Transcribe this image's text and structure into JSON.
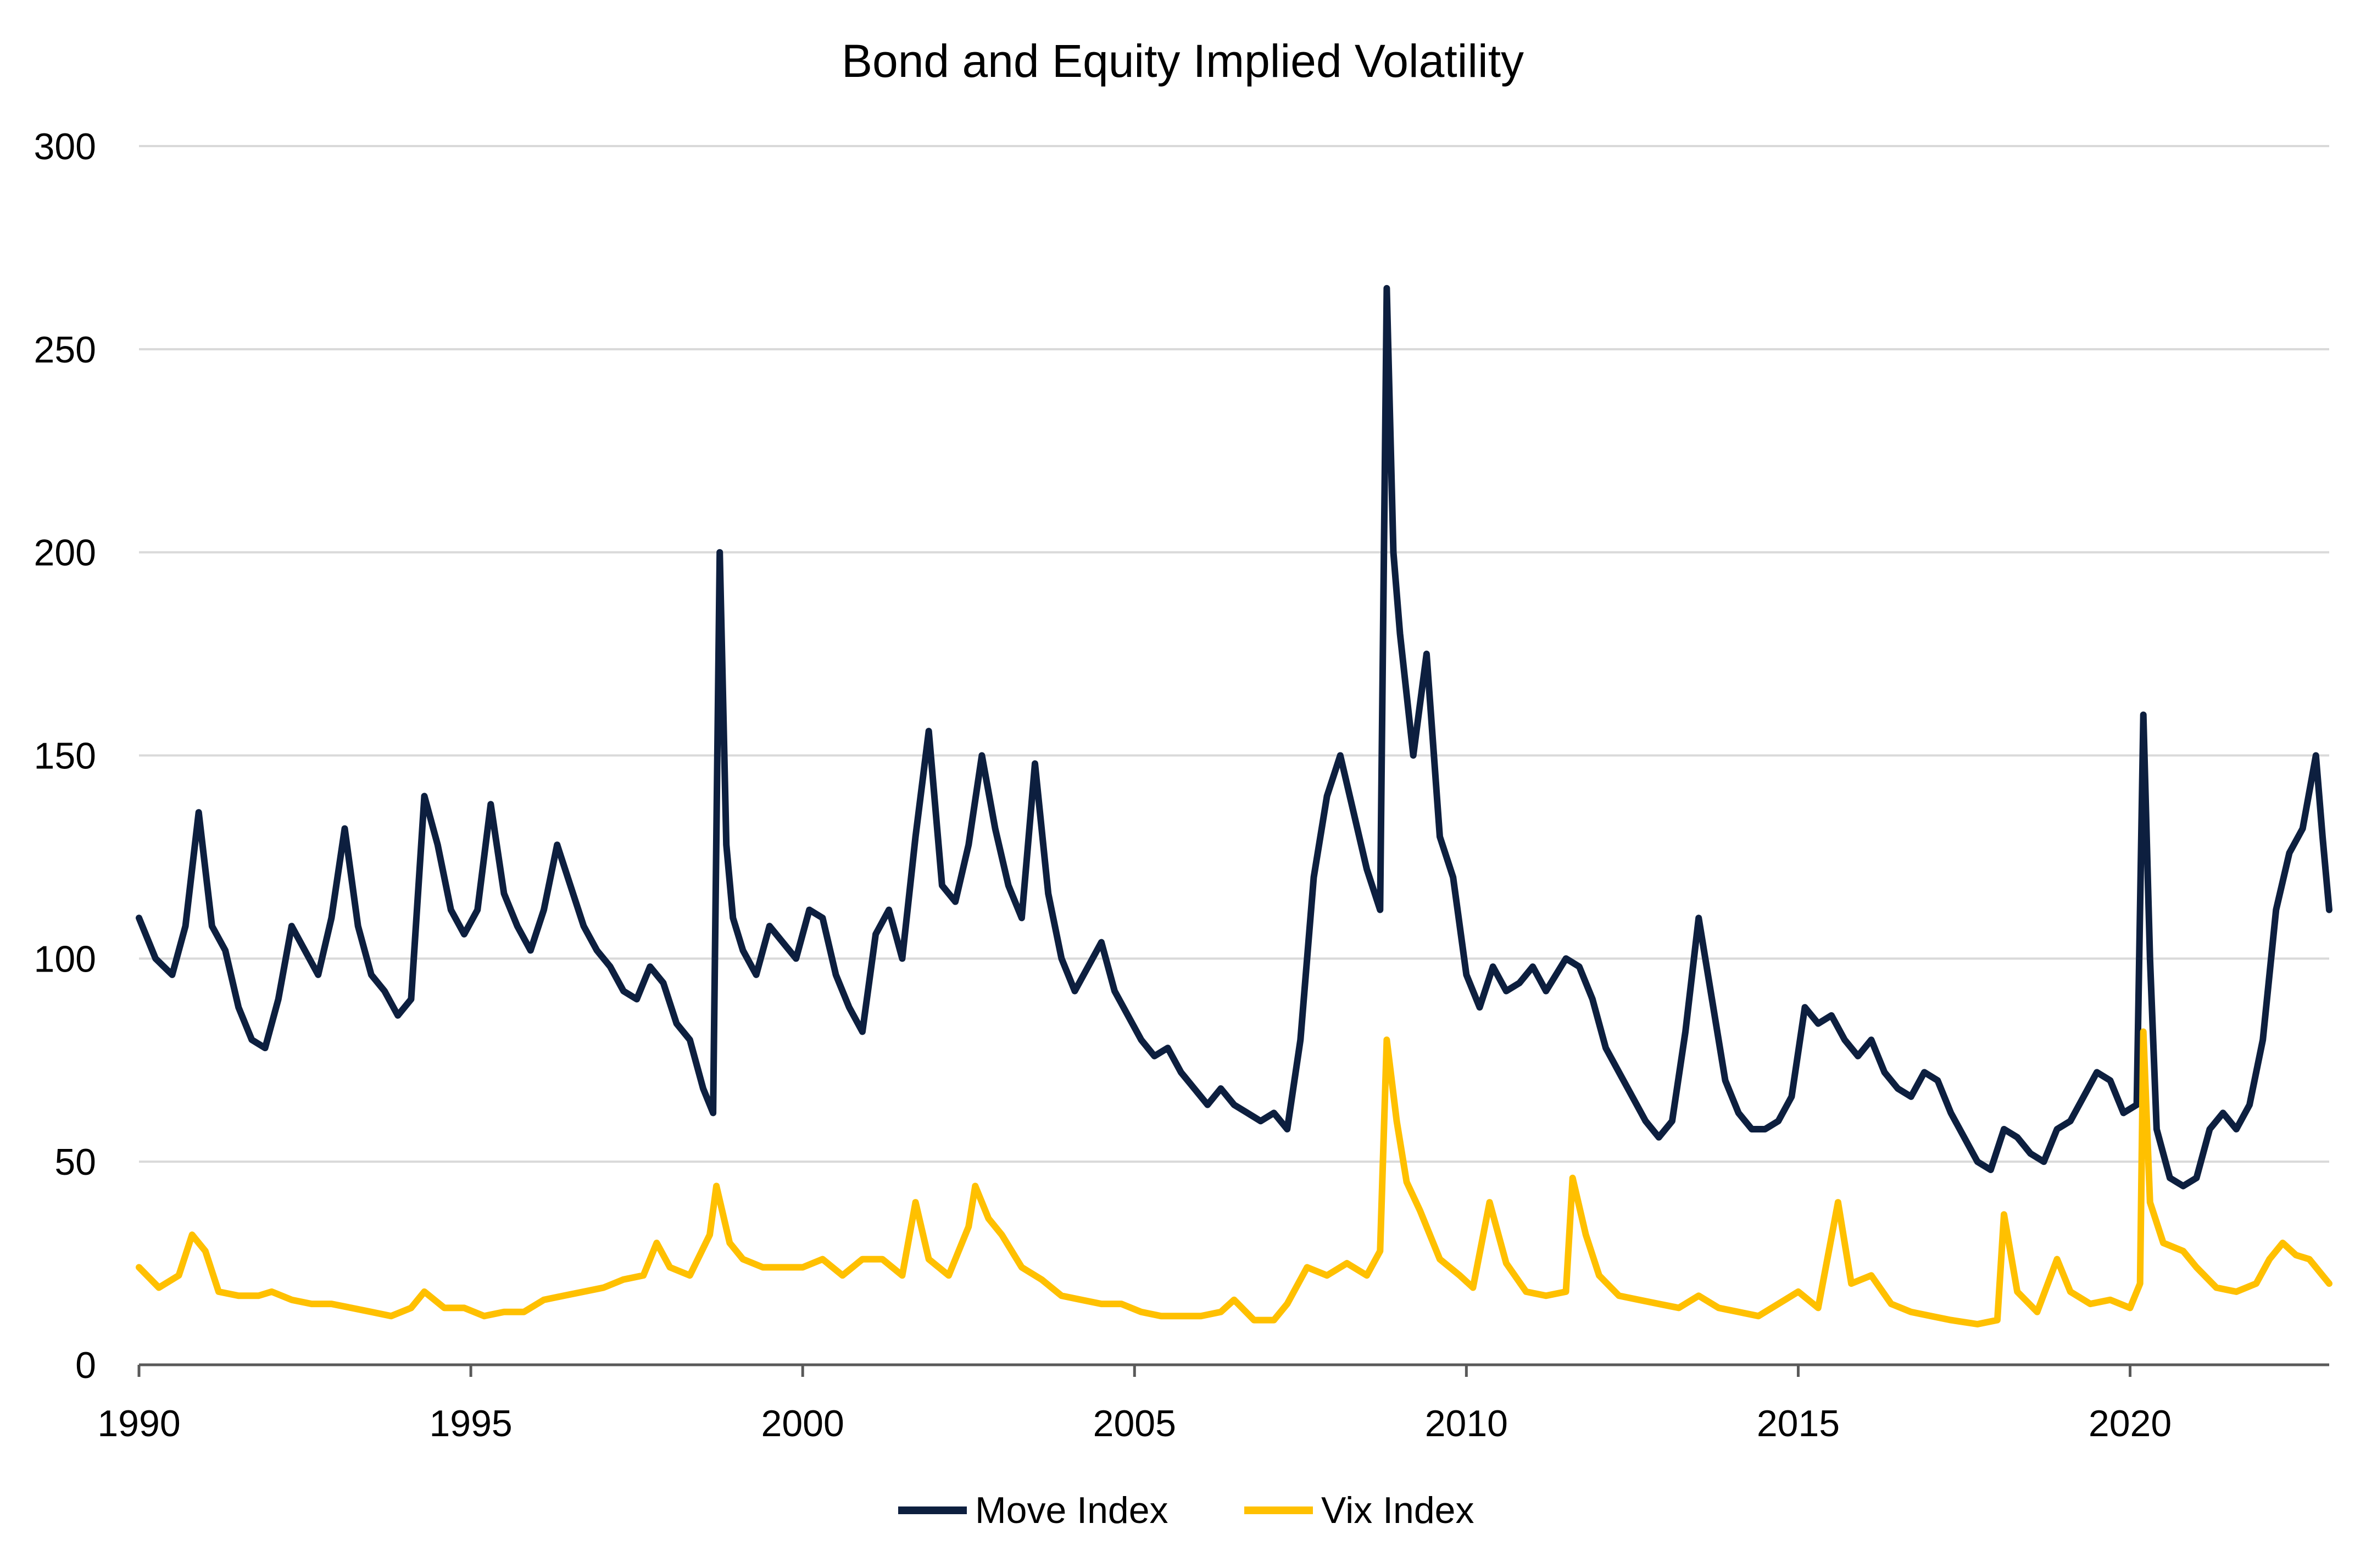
{
  "chart_data": {
    "type": "line",
    "title": "Bond and Equity Implied Volatility",
    "xlabel": "",
    "ylabel": "",
    "xlim": [
      1990,
      2023
    ],
    "ylim": [
      0,
      300
    ],
    "x_ticks": [
      "1990",
      "1995",
      "2000",
      "2005",
      "2010",
      "2015",
      "2020"
    ],
    "y_ticks": [
      "0",
      "50",
      "100",
      "150",
      "200",
      "250",
      "300"
    ],
    "grid": "horizontal",
    "legend_position": "bottom",
    "colors": {
      "move": "#0d1f3f",
      "vix": "#ffc000"
    },
    "series": [
      {
        "name": "Move Index",
        "color": "#0d1f3f",
        "points": [
          [
            1990.0,
            110
          ],
          [
            1990.25,
            100
          ],
          [
            1990.5,
            96
          ],
          [
            1990.7,
            108
          ],
          [
            1990.9,
            136
          ],
          [
            1991.1,
            108
          ],
          [
            1991.3,
            102
          ],
          [
            1991.5,
            88
          ],
          [
            1991.7,
            80
          ],
          [
            1991.9,
            78
          ],
          [
            1992.1,
            90
          ],
          [
            1992.3,
            108
          ],
          [
            1992.5,
            102
          ],
          [
            1992.7,
            96
          ],
          [
            1992.9,
            110
          ],
          [
            1993.1,
            132
          ],
          [
            1993.3,
            108
          ],
          [
            1993.5,
            96
          ],
          [
            1993.7,
            92
          ],
          [
            1993.9,
            86
          ],
          [
            1994.1,
            90
          ],
          [
            1994.3,
            140
          ],
          [
            1994.5,
            128
          ],
          [
            1994.7,
            112
          ],
          [
            1994.9,
            106
          ],
          [
            1995.1,
            112
          ],
          [
            1995.3,
            138
          ],
          [
            1995.5,
            116
          ],
          [
            1995.7,
            108
          ],
          [
            1995.9,
            102
          ],
          [
            1996.1,
            112
          ],
          [
            1996.3,
            128
          ],
          [
            1996.5,
            118
          ],
          [
            1996.7,
            108
          ],
          [
            1996.9,
            102
          ],
          [
            1997.1,
            98
          ],
          [
            1997.3,
            92
          ],
          [
            1997.5,
            90
          ],
          [
            1997.7,
            98
          ],
          [
            1997.9,
            94
          ],
          [
            1998.1,
            84
          ],
          [
            1998.3,
            80
          ],
          [
            1998.5,
            68
          ],
          [
            1998.65,
            62
          ],
          [
            1998.75,
            200
          ],
          [
            1998.85,
            128
          ],
          [
            1998.95,
            110
          ],
          [
            1999.1,
            102
          ],
          [
            1999.3,
            96
          ],
          [
            1999.5,
            108
          ],
          [
            1999.7,
            104
          ],
          [
            1999.9,
            100
          ],
          [
            2000.1,
            112
          ],
          [
            2000.3,
            110
          ],
          [
            2000.5,
            96
          ],
          [
            2000.7,
            88
          ],
          [
            2000.9,
            82
          ],
          [
            2001.1,
            106
          ],
          [
            2001.3,
            112
          ],
          [
            2001.5,
            100
          ],
          [
            2001.7,
            130
          ],
          [
            2001.9,
            156
          ],
          [
            2002.1,
            118
          ],
          [
            2002.3,
            114
          ],
          [
            2002.5,
            128
          ],
          [
            2002.7,
            150
          ],
          [
            2002.9,
            132
          ],
          [
            2003.1,
            118
          ],
          [
            2003.3,
            110
          ],
          [
            2003.5,
            148
          ],
          [
            2003.7,
            116
          ],
          [
            2003.9,
            100
          ],
          [
            2004.1,
            92
          ],
          [
            2004.3,
            98
          ],
          [
            2004.5,
            104
          ],
          [
            2004.7,
            92
          ],
          [
            2004.9,
            86
          ],
          [
            2005.1,
            80
          ],
          [
            2005.3,
            76
          ],
          [
            2005.5,
            78
          ],
          [
            2005.7,
            72
          ],
          [
            2005.9,
            68
          ],
          [
            2006.1,
            64
          ],
          [
            2006.3,
            68
          ],
          [
            2006.5,
            64
          ],
          [
            2006.7,
            62
          ],
          [
            2006.9,
            60
          ],
          [
            2007.1,
            62
          ],
          [
            2007.3,
            58
          ],
          [
            2007.5,
            80
          ],
          [
            2007.7,
            120
          ],
          [
            2007.9,
            140
          ],
          [
            2008.1,
            150
          ],
          [
            2008.3,
            136
          ],
          [
            2008.5,
            122
          ],
          [
            2008.7,
            112
          ],
          [
            2008.8,
            265
          ],
          [
            2008.9,
            200
          ],
          [
            2009.0,
            180
          ],
          [
            2009.2,
            150
          ],
          [
            2009.4,
            175
          ],
          [
            2009.6,
            130
          ],
          [
            2009.8,
            120
          ],
          [
            2010.0,
            96
          ],
          [
            2010.2,
            88
          ],
          [
            2010.4,
            98
          ],
          [
            2010.6,
            92
          ],
          [
            2010.8,
            94
          ],
          [
            2011.0,
            98
          ],
          [
            2011.2,
            92
          ],
          [
            2011.5,
            100
          ],
          [
            2011.7,
            98
          ],
          [
            2011.9,
            90
          ],
          [
            2012.1,
            78
          ],
          [
            2012.3,
            72
          ],
          [
            2012.5,
            66
          ],
          [
            2012.7,
            60
          ],
          [
            2012.9,
            56
          ],
          [
            2013.1,
            60
          ],
          [
            2013.3,
            82
          ],
          [
            2013.5,
            110
          ],
          [
            2013.7,
            90
          ],
          [
            2013.9,
            70
          ],
          [
            2014.1,
            62
          ],
          [
            2014.3,
            58
          ],
          [
            2014.5,
            58
          ],
          [
            2014.7,
            60
          ],
          [
            2014.9,
            66
          ],
          [
            2015.1,
            88
          ],
          [
            2015.3,
            84
          ],
          [
            2015.5,
            86
          ],
          [
            2015.7,
            80
          ],
          [
            2015.9,
            76
          ],
          [
            2016.1,
            80
          ],
          [
            2016.3,
            72
          ],
          [
            2016.5,
            68
          ],
          [
            2016.7,
            66
          ],
          [
            2016.9,
            72
          ],
          [
            2017.1,
            70
          ],
          [
            2017.3,
            62
          ],
          [
            2017.5,
            56
          ],
          [
            2017.7,
            50
          ],
          [
            2017.9,
            48
          ],
          [
            2018.1,
            58
          ],
          [
            2018.3,
            56
          ],
          [
            2018.5,
            52
          ],
          [
            2018.7,
            50
          ],
          [
            2018.9,
            58
          ],
          [
            2019.1,
            60
          ],
          [
            2019.3,
            66
          ],
          [
            2019.5,
            72
          ],
          [
            2019.7,
            70
          ],
          [
            2019.9,
            62
          ],
          [
            2020.1,
            64
          ],
          [
            2020.2,
            160
          ],
          [
            2020.3,
            100
          ],
          [
            2020.4,
            58
          ],
          [
            2020.6,
            46
          ],
          [
            2020.8,
            44
          ],
          [
            2021.0,
            46
          ],
          [
            2021.2,
            58
          ],
          [
            2021.4,
            62
          ],
          [
            2021.6,
            58
          ],
          [
            2021.8,
            64
          ],
          [
            2022.0,
            80
          ],
          [
            2022.2,
            112
          ],
          [
            2022.4,
            126
          ],
          [
            2022.6,
            132
          ],
          [
            2022.8,
            150
          ],
          [
            2022.9,
            130
          ],
          [
            2023.0,
            112
          ]
        ]
      },
      {
        "name": "Vix Index",
        "color": "#ffc000",
        "points": [
          [
            1990.0,
            24
          ],
          [
            1990.3,
            19
          ],
          [
            1990.6,
            22
          ],
          [
            1990.8,
            32
          ],
          [
            1991.0,
            28
          ],
          [
            1991.2,
            18
          ],
          [
            1991.5,
            17
          ],
          [
            1991.8,
            17
          ],
          [
            1992.0,
            18
          ],
          [
            1992.3,
            16
          ],
          [
            1992.6,
            15
          ],
          [
            1992.9,
            15
          ],
          [
            1993.2,
            14
          ],
          [
            1993.5,
            13
          ],
          [
            1993.8,
            12
          ],
          [
            1994.1,
            14
          ],
          [
            1994.3,
            18
          ],
          [
            1994.6,
            14
          ],
          [
            1994.9,
            14
          ],
          [
            1995.2,
            12
          ],
          [
            1995.5,
            13
          ],
          [
            1995.8,
            13
          ],
          [
            1996.1,
            16
          ],
          [
            1996.4,
            17
          ],
          [
            1996.7,
            18
          ],
          [
            1997.0,
            19
          ],
          [
            1997.3,
            21
          ],
          [
            1997.6,
            22
          ],
          [
            1997.8,
            30
          ],
          [
            1998.0,
            24
          ],
          [
            1998.3,
            22
          ],
          [
            1998.6,
            32
          ],
          [
            1998.7,
            44
          ],
          [
            1998.9,
            30
          ],
          [
            1999.1,
            26
          ],
          [
            1999.4,
            24
          ],
          [
            1999.7,
            24
          ],
          [
            2000.0,
            24
          ],
          [
            2000.3,
            26
          ],
          [
            2000.6,
            22
          ],
          [
            2000.9,
            26
          ],
          [
            2001.2,
            26
          ],
          [
            2001.5,
            22
          ],
          [
            2001.7,
            40
          ],
          [
            2001.9,
            26
          ],
          [
            2002.2,
            22
          ],
          [
            2002.5,
            34
          ],
          [
            2002.6,
            44
          ],
          [
            2002.8,
            36
          ],
          [
            2003.0,
            32
          ],
          [
            2003.3,
            24
          ],
          [
            2003.6,
            21
          ],
          [
            2003.9,
            17
          ],
          [
            2004.2,
            16
          ],
          [
            2004.5,
            15
          ],
          [
            2004.8,
            15
          ],
          [
            2005.1,
            13
          ],
          [
            2005.4,
            12
          ],
          [
            2005.7,
            12
          ],
          [
            2006.0,
            12
          ],
          [
            2006.3,
            13
          ],
          [
            2006.5,
            16
          ],
          [
            2006.8,
            11
          ],
          [
            2007.1,
            11
          ],
          [
            2007.3,
            15
          ],
          [
            2007.6,
            24
          ],
          [
            2007.9,
            22
          ],
          [
            2008.2,
            25
          ],
          [
            2008.5,
            22
          ],
          [
            2008.7,
            28
          ],
          [
            2008.8,
            80
          ],
          [
            2008.95,
            60
          ],
          [
            2009.1,
            45
          ],
          [
            2009.3,
            38
          ],
          [
            2009.6,
            26
          ],
          [
            2009.9,
            22
          ],
          [
            2010.1,
            19
          ],
          [
            2010.35,
            40
          ],
          [
            2010.6,
            25
          ],
          [
            2010.9,
            18
          ],
          [
            2011.2,
            17
          ],
          [
            2011.5,
            18
          ],
          [
            2011.6,
            46
          ],
          [
            2011.8,
            32
          ],
          [
            2012.0,
            22
          ],
          [
            2012.3,
            17
          ],
          [
            2012.6,
            16
          ],
          [
            2012.9,
            15
          ],
          [
            2013.2,
            14
          ],
          [
            2013.5,
            17
          ],
          [
            2013.8,
            14
          ],
          [
            2014.1,
            13
          ],
          [
            2014.4,
            12
          ],
          [
            2014.8,
            16
          ],
          [
            2015.0,
            18
          ],
          [
            2015.3,
            14
          ],
          [
            2015.6,
            40
          ],
          [
            2015.8,
            20
          ],
          [
            2016.1,
            22
          ],
          [
            2016.4,
            15
          ],
          [
            2016.7,
            13
          ],
          [
            2017.0,
            12
          ],
          [
            2017.3,
            11
          ],
          [
            2017.7,
            10
          ],
          [
            2018.0,
            11
          ],
          [
            2018.1,
            37
          ],
          [
            2018.3,
            18
          ],
          [
            2018.6,
            13
          ],
          [
            2018.9,
            26
          ],
          [
            2019.1,
            18
          ],
          [
            2019.4,
            15
          ],
          [
            2019.7,
            16
          ],
          [
            2020.0,
            14
          ],
          [
            2020.15,
            20
          ],
          [
            2020.2,
            82
          ],
          [
            2020.3,
            40
          ],
          [
            2020.5,
            30
          ],
          [
            2020.8,
            28
          ],
          [
            2021.0,
            24
          ],
          [
            2021.3,
            19
          ],
          [
            2021.6,
            18
          ],
          [
            2021.9,
            20
          ],
          [
            2022.1,
            26
          ],
          [
            2022.3,
            30
          ],
          [
            2022.5,
            27
          ],
          [
            2022.7,
            26
          ],
          [
            2022.9,
            22
          ],
          [
            2023.0,
            20
          ]
        ]
      }
    ]
  }
}
